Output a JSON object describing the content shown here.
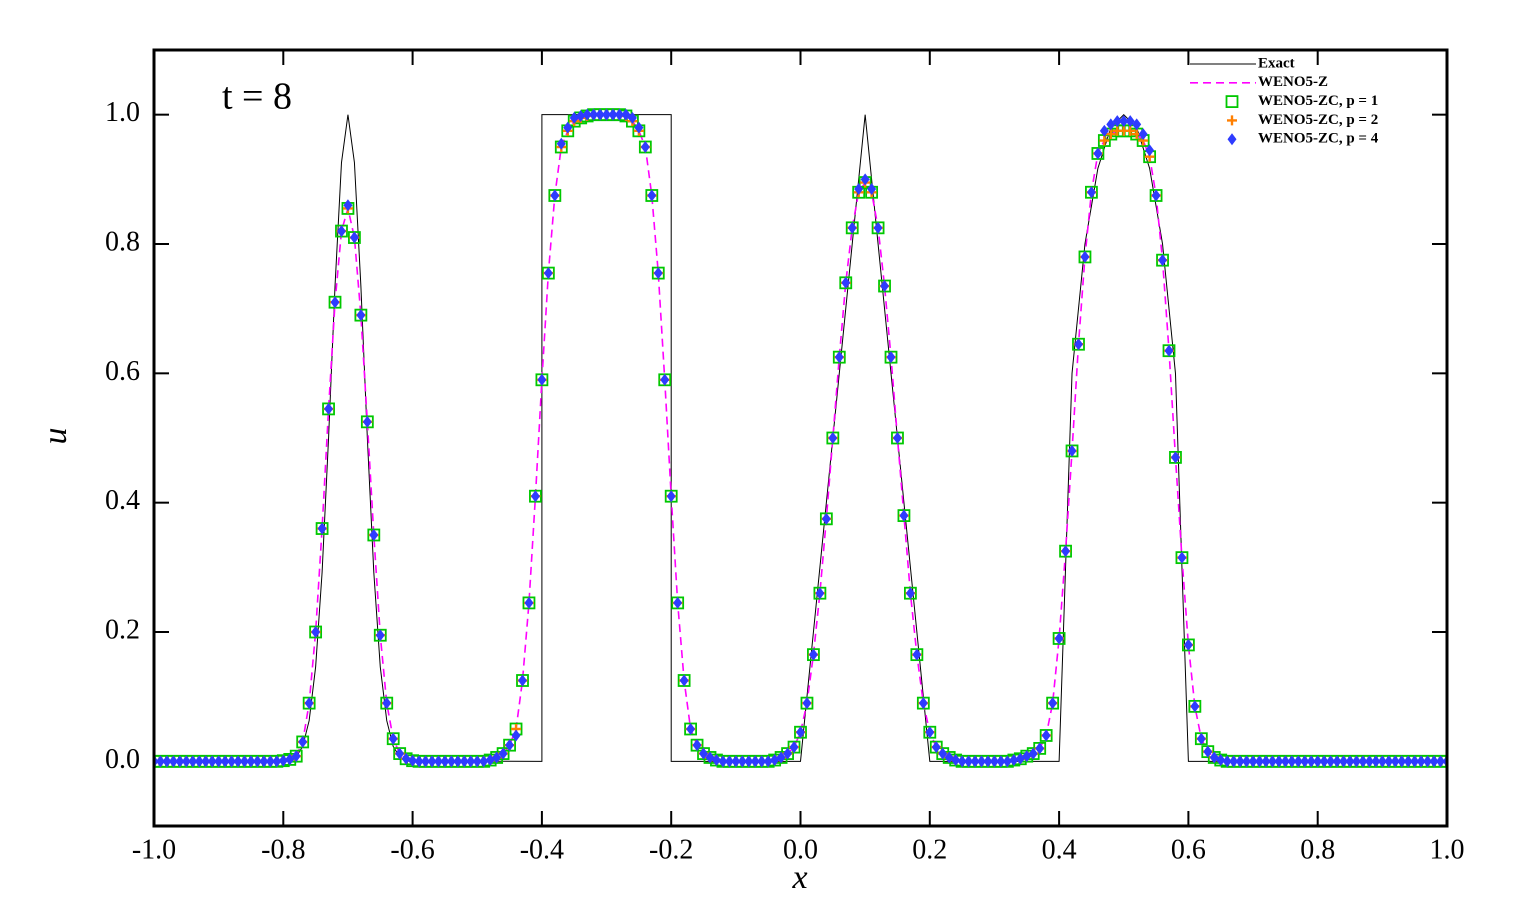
{
  "chart_data": {
    "type": "line",
    "annotation": "t = 8",
    "xlabel": "x",
    "ylabel": "u",
    "xlim": [
      -1,
      1
    ],
    "ylim": [
      -0.1,
      1.1
    ],
    "xticks": [
      {
        "value": -1,
        "label": "-1.0"
      },
      -0.8,
      -0.6,
      -0.4,
      -0.2,
      {
        "value": 0,
        "label": "0.0"
      },
      0.2,
      0.4,
      0.6,
      0.8,
      {
        "value": 1,
        "label": "1.0"
      }
    ],
    "yticks": [
      {
        "value": 0,
        "label": "0.0"
      },
      0.2,
      0.4,
      0.6,
      0.8,
      {
        "value": 1,
        "label": "1.0"
      }
    ],
    "legend": "upper right",
    "x": [
      -1,
      -0.99,
      -0.98,
      -0.97,
      -0.96,
      -0.95,
      -0.94,
      -0.93,
      -0.92,
      -0.91,
      -0.9,
      -0.89,
      -0.88,
      -0.87,
      -0.86,
      -0.85,
      -0.84,
      -0.83,
      -0.82,
      -0.81,
      -0.8,
      -0.79,
      -0.78,
      -0.77,
      -0.76,
      -0.75,
      -0.74,
      -0.73,
      -0.72,
      -0.71,
      -0.7,
      -0.69,
      -0.68,
      -0.67,
      -0.66,
      -0.65,
      -0.64,
      -0.63,
      -0.62,
      -0.61,
      -0.6,
      -0.59,
      -0.58,
      -0.57,
      -0.56,
      -0.55,
      -0.54,
      -0.53,
      -0.52,
      -0.51,
      -0.5,
      -0.49,
      -0.48,
      -0.47,
      -0.46,
      -0.45,
      -0.44,
      -0.43,
      -0.42,
      -0.41,
      -0.4,
      -0.39,
      -0.38,
      -0.37,
      -0.36,
      -0.35,
      -0.34,
      -0.33,
      -0.32,
      -0.31,
      -0.3,
      -0.29,
      -0.28,
      -0.27,
      -0.26,
      -0.25,
      -0.24,
      -0.23,
      -0.22,
      -0.21,
      -0.2,
      -0.19,
      -0.18,
      -0.17,
      -0.16,
      -0.15,
      -0.14,
      -0.13,
      -0.12,
      -0.11,
      -0.1,
      -0.09,
      -0.08,
      -0.07,
      -0.06,
      -0.05,
      -0.04,
      -0.03,
      -0.02,
      -0.01,
      0,
      0.01,
      0.02,
      0.03,
      0.04,
      0.05,
      0.06,
      0.07,
      0.08,
      0.09,
      0.1,
      0.11,
      0.12,
      0.13,
      0.14,
      0.15,
      0.16,
      0.17,
      0.18,
      0.19,
      0.2,
      0.21,
      0.22,
      0.23,
      0.24,
      0.25,
      0.26,
      0.27,
      0.28,
      0.29,
      0.3,
      0.31,
      0.32,
      0.33,
      0.34,
      0.35,
      0.36,
      0.37,
      0.38,
      0.39,
      0.4,
      0.41,
      0.42,
      0.43,
      0.44,
      0.45,
      0.46,
      0.47,
      0.48,
      0.49,
      0.5,
      0.51,
      0.52,
      0.53,
      0.54,
      0.55,
      0.56,
      0.57,
      0.58,
      0.59,
      0.6,
      0.61,
      0.62,
      0.63,
      0.64,
      0.65,
      0.66,
      0.67,
      0.68,
      0.69,
      0.7,
      0.71,
      0.72,
      0.73,
      0.74,
      0.75,
      0.76,
      0.77,
      0.78,
      0.79,
      0.8,
      0.81,
      0.82,
      0.83,
      0.84,
      0.85,
      0.86,
      0.87,
      0.88,
      0.89,
      0.9,
      0.91,
      0.92,
      0.93,
      0.94,
      0.95,
      0.96,
      0.97,
      0.98,
      0.99,
      1
    ],
    "series": [
      {
        "name": "Exact",
        "color": "#000000",
        "line": "solid",
        "x": [
          -1,
          -0.8,
          -0.79,
          -0.78,
          -0.77,
          -0.76,
          -0.75,
          -0.74,
          -0.73,
          -0.72,
          -0.71,
          -0.7,
          -0.69,
          -0.68,
          -0.67,
          -0.66,
          -0.65,
          -0.64,
          -0.63,
          -0.62,
          -0.61,
          -0.6,
          -0.4,
          -0.4,
          -0.2,
          -0.2,
          0,
          0.1,
          0.2,
          0.4,
          0.42,
          0.44,
          0.46,
          0.48,
          0.5,
          0.52,
          0.54,
          0.56,
          0.58,
          0.6,
          1
        ],
        "values": [
          0,
          0.0005,
          0.002,
          0.007,
          0.023,
          0.063,
          0.146,
          0.292,
          0.5,
          0.735,
          0.926,
          1,
          0.926,
          0.735,
          0.5,
          0.292,
          0.146,
          0.063,
          0.023,
          0.007,
          0.002,
          0.0005,
          0,
          1,
          1,
          0,
          0,
          1,
          0,
          0,
          0.6,
          0.8,
          0.917,
          0.98,
          1,
          0.98,
          0.917,
          0.8,
          0.6,
          0,
          0
        ]
      },
      {
        "name": "WENO5-Z",
        "color": "#ff00ff",
        "line": "dashed",
        "values": [
          0,
          0,
          0,
          0,
          0,
          0,
          0,
          0,
          0,
          0,
          0,
          0,
          0,
          0,
          0,
          0,
          0,
          0,
          0,
          0,
          0.001,
          0.003,
          0.008,
          0.03,
          0.09,
          0.2,
          0.36,
          0.545,
          0.71,
          0.82,
          0.855,
          0.81,
          0.69,
          0.525,
          0.35,
          0.195,
          0.09,
          0.035,
          0.012,
          0.004,
          0.001,
          0,
          0,
          0,
          0,
          0,
          0,
          0,
          0,
          0,
          0,
          0,
          0.002,
          0.006,
          0.012,
          0.025,
          0.05,
          0.125,
          0.245,
          0.41,
          0.59,
          0.755,
          0.875,
          0.95,
          0.975,
          0.99,
          0.995,
          0.998,
          1,
          1,
          1,
          1,
          1,
          0.998,
          0.99,
          0.975,
          0.95,
          0.875,
          0.755,
          0.59,
          0.41,
          0.245,
          0.125,
          0.05,
          0.025,
          0.012,
          0.006,
          0.002,
          0,
          0,
          0,
          0,
          0,
          0,
          0,
          0,
          0.002,
          0.006,
          0.012,
          0.022,
          0.045,
          0.09,
          0.165,
          0.26,
          0.375,
          0.5,
          0.625,
          0.74,
          0.825,
          0.88,
          0.895,
          0.88,
          0.825,
          0.735,
          0.625,
          0.5,
          0.38,
          0.26,
          0.165,
          0.09,
          0.045,
          0.022,
          0.012,
          0.006,
          0.002,
          0,
          0,
          0,
          0,
          0,
          0,
          0,
          0,
          0.002,
          0.004,
          0.008,
          0.012,
          0.02,
          0.04,
          0.09,
          0.19,
          0.325,
          0.48,
          0.645,
          0.78,
          0.88,
          0.94,
          0.96,
          0.97,
          0.975,
          0.975,
          0.975,
          0.97,
          0.96,
          0.935,
          0.875,
          0.775,
          0.635,
          0.47,
          0.315,
          0.18,
          0.085,
          0.035,
          0.015,
          0.006,
          0.002,
          0,
          0,
          0,
          0,
          0,
          0,
          0,
          0,
          0,
          0,
          0,
          0,
          0,
          0,
          0,
          0,
          0,
          0,
          0,
          0,
          0,
          0,
          0,
          0,
          0,
          0,
          0,
          0,
          0,
          0,
          0,
          0,
          0,
          0,
          0
        ]
      },
      {
        "name": "WENO5-ZC, p = 1",
        "color": "#00c800",
        "marker": "square",
        "values": [
          0,
          0,
          0,
          0,
          0,
          0,
          0,
          0,
          0,
          0,
          0,
          0,
          0,
          0,
          0,
          0,
          0,
          0,
          0,
          0,
          0.001,
          0.003,
          0.008,
          0.03,
          0.09,
          0.2,
          0.36,
          0.545,
          0.71,
          0.82,
          0.855,
          0.81,
          0.69,
          0.525,
          0.35,
          0.195,
          0.09,
          0.035,
          0.012,
          0.004,
          0.001,
          0,
          0,
          0,
          0,
          0,
          0,
          0,
          0,
          0,
          0,
          0,
          0.002,
          0.006,
          0.012,
          0.025,
          0.05,
          0.125,
          0.245,
          0.41,
          0.59,
          0.755,
          0.875,
          0.95,
          0.975,
          0.99,
          0.995,
          0.998,
          1,
          1,
          1,
          1,
          1,
          0.998,
          0.99,
          0.975,
          0.95,
          0.875,
          0.755,
          0.59,
          0.41,
          0.245,
          0.125,
          0.05,
          0.025,
          0.012,
          0.006,
          0.002,
          0,
          0,
          0,
          0,
          0,
          0,
          0,
          0,
          0.002,
          0.006,
          0.012,
          0.022,
          0.045,
          0.09,
          0.165,
          0.26,
          0.375,
          0.5,
          0.625,
          0.74,
          0.825,
          0.88,
          0.895,
          0.88,
          0.825,
          0.735,
          0.625,
          0.5,
          0.38,
          0.26,
          0.165,
          0.09,
          0.045,
          0.022,
          0.012,
          0.006,
          0.002,
          0,
          0,
          0,
          0,
          0,
          0,
          0,
          0,
          0.002,
          0.004,
          0.008,
          0.012,
          0.02,
          0.04,
          0.09,
          0.19,
          0.325,
          0.48,
          0.645,
          0.78,
          0.88,
          0.94,
          0.96,
          0.97,
          0.975,
          0.975,
          0.975,
          0.97,
          0.96,
          0.935,
          0.875,
          0.775,
          0.635,
          0.47,
          0.315,
          0.18,
          0.085,
          0.035,
          0.015,
          0.006,
          0.002,
          0,
          0,
          0,
          0,
          0,
          0,
          0,
          0,
          0,
          0,
          0,
          0,
          0,
          0,
          0,
          0,
          0,
          0,
          0,
          0,
          0,
          0,
          0,
          0,
          0,
          0,
          0,
          0,
          0,
          0,
          0,
          0,
          0,
          0,
          0
        ]
      },
      {
        "name": "WENO5-ZC, p = 2",
        "color": "#ff7f00",
        "marker": "plus",
        "values": [
          0,
          0,
          0,
          0,
          0,
          0,
          0,
          0,
          0,
          0,
          0,
          0,
          0,
          0,
          0,
          0,
          0,
          0,
          0,
          0,
          0.001,
          0.003,
          0.008,
          0.03,
          0.09,
          0.2,
          0.36,
          0.545,
          0.71,
          0.82,
          0.855,
          0.81,
          0.69,
          0.525,
          0.35,
          0.195,
          0.09,
          0.035,
          0.012,
          0.004,
          0.001,
          0,
          0,
          0,
          0,
          0,
          0,
          0,
          0,
          0,
          0,
          0,
          0.002,
          0.006,
          0.012,
          0.025,
          0.05,
          0.125,
          0.245,
          0.41,
          0.59,
          0.755,
          0.875,
          0.95,
          0.975,
          0.99,
          0.995,
          0.998,
          1,
          1,
          1,
          1,
          1,
          0.998,
          0.99,
          0.975,
          0.95,
          0.875,
          0.755,
          0.59,
          0.41,
          0.245,
          0.125,
          0.05,
          0.025,
          0.012,
          0.006,
          0.002,
          0,
          0,
          0,
          0,
          0,
          0,
          0,
          0,
          0.002,
          0.006,
          0.012,
          0.022,
          0.045,
          0.09,
          0.165,
          0.26,
          0.375,
          0.5,
          0.625,
          0.74,
          0.825,
          0.88,
          0.895,
          0.88,
          0.825,
          0.735,
          0.625,
          0.5,
          0.38,
          0.26,
          0.165,
          0.09,
          0.045,
          0.022,
          0.012,
          0.006,
          0.002,
          0,
          0,
          0,
          0,
          0,
          0,
          0,
          0,
          0.002,
          0.004,
          0.008,
          0.012,
          0.02,
          0.04,
          0.09,
          0.19,
          0.325,
          0.48,
          0.645,
          0.78,
          0.88,
          0.94,
          0.96,
          0.97,
          0.975,
          0.975,
          0.975,
          0.97,
          0.96,
          0.935,
          0.875,
          0.775,
          0.635,
          0.47,
          0.315,
          0.18,
          0.085,
          0.035,
          0.015,
          0.006,
          0.002,
          0,
          0,
          0,
          0,
          0,
          0,
          0,
          0,
          0,
          0,
          0,
          0,
          0,
          0,
          0,
          0,
          0,
          0,
          0,
          0,
          0,
          0,
          0,
          0,
          0,
          0,
          0,
          0,
          0,
          0,
          0,
          0,
          0,
          0,
          0
        ]
      },
      {
        "name": "WENO5-ZC, p = 4",
        "color": "#2e3cff",
        "marker": "diamond",
        "values": [
          0,
          0,
          0,
          0,
          0,
          0,
          0,
          0,
          0,
          0,
          0,
          0,
          0,
          0,
          0,
          0,
          0,
          0,
          0,
          0,
          0.001,
          0.003,
          0.008,
          0.03,
          0.09,
          0.2,
          0.36,
          0.545,
          0.71,
          0.82,
          0.86,
          0.81,
          0.69,
          0.525,
          0.35,
          0.195,
          0.09,
          0.035,
          0.012,
          0.004,
          0.001,
          0,
          0,
          0,
          0,
          0,
          0,
          0,
          0,
          0,
          0,
          0,
          0.002,
          0.006,
          0.012,
          0.025,
          0.04,
          0.125,
          0.245,
          0.41,
          0.59,
          0.755,
          0.875,
          0.955,
          0.98,
          0.995,
          0.998,
          1,
          1,
          1,
          1,
          1,
          1,
          1,
          0.995,
          0.98,
          0.95,
          0.875,
          0.755,
          0.59,
          0.41,
          0.245,
          0.125,
          0.05,
          0.025,
          0.012,
          0.006,
          0.002,
          0,
          0,
          0,
          0,
          0,
          0,
          0,
          0,
          0.002,
          0.006,
          0.012,
          0.022,
          0.045,
          0.09,
          0.165,
          0.26,
          0.375,
          0.5,
          0.625,
          0.74,
          0.825,
          0.885,
          0.9,
          0.885,
          0.825,
          0.735,
          0.625,
          0.5,
          0.38,
          0.26,
          0.165,
          0.09,
          0.045,
          0.022,
          0.012,
          0.006,
          0.002,
          0,
          0,
          0,
          0,
          0,
          0,
          0,
          0,
          0.002,
          0.004,
          0.008,
          0.012,
          0.02,
          0.04,
          0.09,
          0.19,
          0.325,
          0.48,
          0.645,
          0.78,
          0.88,
          0.94,
          0.975,
          0.985,
          0.99,
          0.99,
          0.99,
          0.985,
          0.97,
          0.945,
          0.875,
          0.775,
          0.635,
          0.47,
          0.315,
          0.18,
          0.085,
          0.035,
          0.015,
          0.006,
          0.002,
          0,
          0,
          0,
          0,
          0,
          0,
          0,
          0,
          0,
          0,
          0,
          0,
          0,
          0,
          0,
          0,
          0,
          0,
          0,
          0,
          0,
          0,
          0,
          0,
          0,
          0,
          0,
          0,
          0,
          0,
          0,
          0,
          0,
          0,
          0
        ]
      }
    ]
  }
}
